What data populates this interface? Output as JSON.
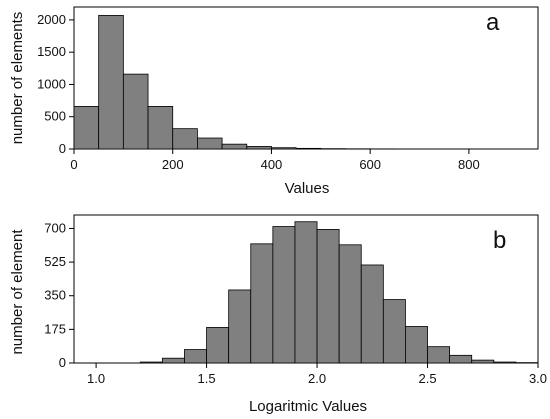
{
  "chart_data": [
    {
      "type": "bar",
      "panel_label": "a",
      "xlabel": "Values",
      "ylabel": "number of elements",
      "xlim": [
        0,
        940
      ],
      "ylim": [
        0,
        2200
      ],
      "xticks": [
        0,
        200,
        400,
        600,
        800
      ],
      "yticks": [
        0,
        500,
        1000,
        1500,
        2000
      ],
      "bin_width": 50,
      "bins": [
        {
          "x0": 0,
          "x1": 50,
          "count": 660
        },
        {
          "x0": 50,
          "x1": 100,
          "count": 2070
        },
        {
          "x0": 100,
          "x1": 150,
          "count": 1160
        },
        {
          "x0": 150,
          "x1": 200,
          "count": 660
        },
        {
          "x0": 200,
          "x1": 250,
          "count": 315
        },
        {
          "x0": 250,
          "x1": 300,
          "count": 170
        },
        {
          "x0": 300,
          "x1": 350,
          "count": 75
        },
        {
          "x0": 350,
          "x1": 400,
          "count": 40
        },
        {
          "x0": 400,
          "x1": 450,
          "count": 20
        },
        {
          "x0": 450,
          "x1": 500,
          "count": 10
        },
        {
          "x0": 500,
          "x1": 550,
          "count": 5
        },
        {
          "x0": 550,
          "x1": 600,
          "count": 3
        },
        {
          "x0": 600,
          "x1": 650,
          "count": 2
        },
        {
          "x0": 650,
          "x1": 700,
          "count": 1
        },
        {
          "x0": 700,
          "x1": 750,
          "count": 1
        },
        {
          "x0": 750,
          "x1": 800,
          "count": 1
        },
        {
          "x0": 800,
          "x1": 850,
          "count": 1
        },
        {
          "x0": 850,
          "x1": 900,
          "count": 1
        }
      ]
    },
    {
      "type": "bar",
      "panel_label": "b",
      "xlabel": "Logaritmic Values",
      "ylabel": "number of  element",
      "xlim": [
        0.9,
        3.0
      ],
      "ylim": [
        0,
        770
      ],
      "xticks": [
        1.0,
        1.5,
        2.0,
        2.5,
        3.0
      ],
      "xtick_labels": [
        "1.0",
        "1.5",
        "2.0",
        "2.5",
        "3.0"
      ],
      "yticks": [
        0,
        175,
        350,
        525,
        700
      ],
      "bin_width": 0.1,
      "bins": [
        {
          "x0": 1.0,
          "x1": 1.1,
          "count": 0
        },
        {
          "x0": 1.1,
          "x1": 1.2,
          "count": 0
        },
        {
          "x0": 1.2,
          "x1": 1.3,
          "count": 5
        },
        {
          "x0": 1.3,
          "x1": 1.4,
          "count": 25
        },
        {
          "x0": 1.4,
          "x1": 1.5,
          "count": 70
        },
        {
          "x0": 1.5,
          "x1": 1.6,
          "count": 185
        },
        {
          "x0": 1.6,
          "x1": 1.7,
          "count": 380
        },
        {
          "x0": 1.7,
          "x1": 1.8,
          "count": 620
        },
        {
          "x0": 1.8,
          "x1": 1.9,
          "count": 710
        },
        {
          "x0": 1.9,
          "x1": 2.0,
          "count": 735
        },
        {
          "x0": 2.0,
          "x1": 2.1,
          "count": 695
        },
        {
          "x0": 2.1,
          "x1": 2.2,
          "count": 615
        },
        {
          "x0": 2.2,
          "x1": 2.3,
          "count": 510
        },
        {
          "x0": 2.3,
          "x1": 2.4,
          "count": 330
        },
        {
          "x0": 2.4,
          "x1": 2.5,
          "count": 190
        },
        {
          "x0": 2.5,
          "x1": 2.6,
          "count": 85
        },
        {
          "x0": 2.6,
          "x1": 2.7,
          "count": 40
        },
        {
          "x0": 2.7,
          "x1": 2.8,
          "count": 15
        },
        {
          "x0": 2.8,
          "x1": 2.9,
          "count": 5
        },
        {
          "x0": 2.9,
          "x1": 3.0,
          "count": 2
        }
      ]
    }
  ]
}
